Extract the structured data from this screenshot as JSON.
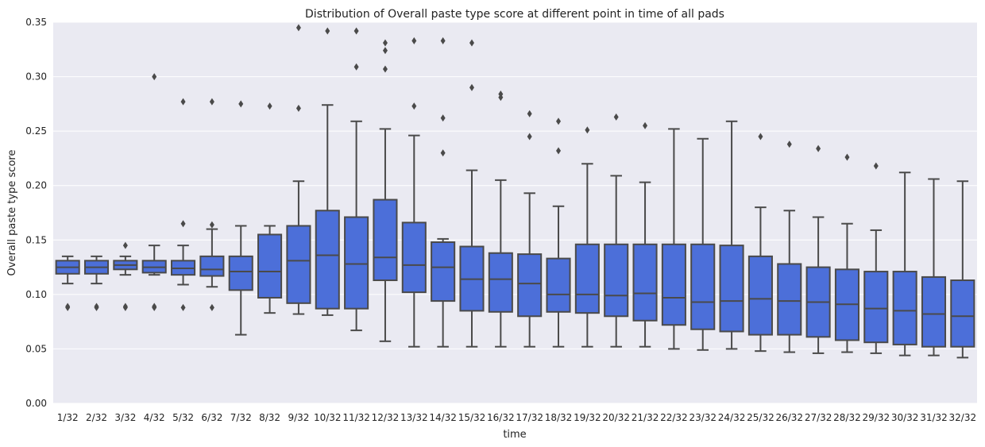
{
  "chart_data": {
    "type": "box",
    "title": "Distribution of Overall paste type score at different point in time of all pads",
    "xlabel": "time",
    "ylabel": "Overall paste type score",
    "ylim": [
      0,
      0.35
    ],
    "yticks": [
      "0.00",
      "0.05",
      "0.10",
      "0.15",
      "0.20",
      "0.25",
      "0.30",
      "0.35"
    ],
    "grid": "horizontal",
    "colors": {
      "box": "#4C6FD9",
      "line": "#4A4A4A",
      "plot_bg": "#EAEAF2",
      "grid": "#FFFFFF"
    },
    "categories": [
      "1/32",
      "2/32",
      "3/32",
      "4/32",
      "5/32",
      "6/32",
      "7/32",
      "8/32",
      "9/32",
      "10/32",
      "11/32",
      "12/32",
      "13/32",
      "14/32",
      "15/32",
      "16/32",
      "17/32",
      "18/32",
      "19/32",
      "20/32",
      "21/32",
      "22/32",
      "23/32",
      "24/32",
      "25/32",
      "26/32",
      "27/32",
      "28/32",
      "29/32",
      "30/32",
      "31/32",
      "32/32"
    ],
    "boxes": [
      {
        "whislo": 0.11,
        "q1": 0.119,
        "med": 0.125,
        "q3": 0.131,
        "whishi": 0.135,
        "fliers": [
          0.088,
          0.089
        ]
      },
      {
        "whislo": 0.11,
        "q1": 0.119,
        "med": 0.125,
        "q3": 0.131,
        "whishi": 0.135,
        "fliers": [
          0.088,
          0.089
        ]
      },
      {
        "whislo": 0.118,
        "q1": 0.123,
        "med": 0.127,
        "q3": 0.131,
        "whishi": 0.135,
        "fliers": [
          0.088,
          0.089,
          0.145
        ]
      },
      {
        "whislo": 0.118,
        "q1": 0.12,
        "med": 0.125,
        "q3": 0.131,
        "whishi": 0.145,
        "fliers": [
          0.088,
          0.089,
          0.3
        ]
      },
      {
        "whislo": 0.109,
        "q1": 0.118,
        "med": 0.124,
        "q3": 0.131,
        "whishi": 0.145,
        "fliers": [
          0.088,
          0.165,
          0.277
        ]
      },
      {
        "whislo": 0.107,
        "q1": 0.117,
        "med": 0.123,
        "q3": 0.135,
        "whishi": 0.16,
        "fliers": [
          0.088,
          0.164,
          0.277
        ]
      },
      {
        "whislo": 0.063,
        "q1": 0.104,
        "med": 0.121,
        "q3": 0.135,
        "whishi": 0.163,
        "fliers": [
          0.275
        ]
      },
      {
        "whislo": 0.083,
        "q1": 0.097,
        "med": 0.121,
        "q3": 0.155,
        "whishi": 0.163,
        "fliers": [
          0.273
        ]
      },
      {
        "whislo": 0.082,
        "q1": 0.092,
        "med": 0.131,
        "q3": 0.163,
        "whishi": 0.204,
        "fliers": [
          0.271,
          0.345
        ]
      },
      {
        "whislo": 0.081,
        "q1": 0.087,
        "med": 0.136,
        "q3": 0.177,
        "whishi": 0.274,
        "fliers": [
          0.342
        ]
      },
      {
        "whislo": 0.067,
        "q1": 0.087,
        "med": 0.128,
        "q3": 0.171,
        "whishi": 0.259,
        "fliers": [
          0.309,
          0.342
        ]
      },
      {
        "whislo": 0.057,
        "q1": 0.113,
        "med": 0.134,
        "q3": 0.187,
        "whishi": 0.252,
        "fliers": [
          0.307,
          0.324,
          0.331
        ]
      },
      {
        "whislo": 0.052,
        "q1": 0.102,
        "med": 0.127,
        "q3": 0.166,
        "whishi": 0.246,
        "fliers": [
          0.273,
          0.333
        ]
      },
      {
        "whislo": 0.052,
        "q1": 0.094,
        "med": 0.125,
        "q3": 0.148,
        "whishi": 0.151,
        "fliers": [
          0.23,
          0.262,
          0.333
        ]
      },
      {
        "whislo": 0.052,
        "q1": 0.085,
        "med": 0.114,
        "q3": 0.144,
        "whishi": 0.214,
        "fliers": [
          0.29,
          0.331
        ]
      },
      {
        "whislo": 0.052,
        "q1": 0.084,
        "med": 0.114,
        "q3": 0.138,
        "whishi": 0.205,
        "fliers": [
          0.281,
          0.284
        ]
      },
      {
        "whislo": 0.052,
        "q1": 0.08,
        "med": 0.11,
        "q3": 0.137,
        "whishi": 0.193,
        "fliers": [
          0.245,
          0.266
        ]
      },
      {
        "whislo": 0.052,
        "q1": 0.084,
        "med": 0.1,
        "q3": 0.133,
        "whishi": 0.181,
        "fliers": [
          0.232,
          0.259
        ]
      },
      {
        "whislo": 0.052,
        "q1": 0.083,
        "med": 0.1,
        "q3": 0.146,
        "whishi": 0.22,
        "fliers": [
          0.251
        ]
      },
      {
        "whislo": 0.052,
        "q1": 0.08,
        "med": 0.099,
        "q3": 0.146,
        "whishi": 0.209,
        "fliers": [
          0.263
        ]
      },
      {
        "whislo": 0.052,
        "q1": 0.076,
        "med": 0.101,
        "q3": 0.146,
        "whishi": 0.203,
        "fliers": [
          0.255
        ]
      },
      {
        "whislo": 0.05,
        "q1": 0.072,
        "med": 0.097,
        "q3": 0.146,
        "whishi": 0.252,
        "fliers": []
      },
      {
        "whislo": 0.049,
        "q1": 0.068,
        "med": 0.093,
        "q3": 0.146,
        "whishi": 0.243,
        "fliers": []
      },
      {
        "whislo": 0.05,
        "q1": 0.066,
        "med": 0.094,
        "q3": 0.145,
        "whishi": 0.259,
        "fliers": []
      },
      {
        "whislo": 0.048,
        "q1": 0.063,
        "med": 0.096,
        "q3": 0.135,
        "whishi": 0.18,
        "fliers": [
          0.245
        ]
      },
      {
        "whislo": 0.047,
        "q1": 0.063,
        "med": 0.094,
        "q3": 0.128,
        "whishi": 0.177,
        "fliers": [
          0.238
        ]
      },
      {
        "whislo": 0.046,
        "q1": 0.061,
        "med": 0.093,
        "q3": 0.125,
        "whishi": 0.171,
        "fliers": [
          0.234
        ]
      },
      {
        "whislo": 0.047,
        "q1": 0.058,
        "med": 0.091,
        "q3": 0.123,
        "whishi": 0.165,
        "fliers": [
          0.226
        ]
      },
      {
        "whislo": 0.046,
        "q1": 0.056,
        "med": 0.087,
        "q3": 0.121,
        "whishi": 0.159,
        "fliers": [
          0.218
        ]
      },
      {
        "whislo": 0.044,
        "q1": 0.054,
        "med": 0.085,
        "q3": 0.121,
        "whishi": 0.212,
        "fliers": []
      },
      {
        "whislo": 0.044,
        "q1": 0.052,
        "med": 0.082,
        "q3": 0.116,
        "whishi": 0.206,
        "fliers": []
      },
      {
        "whislo": 0.042,
        "q1": 0.052,
        "med": 0.08,
        "q3": 0.113,
        "whishi": 0.204,
        "fliers": []
      }
    ]
  }
}
